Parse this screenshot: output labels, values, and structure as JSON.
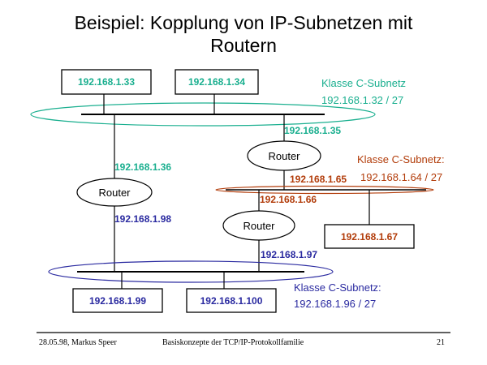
{
  "title": {
    "line1": "Beispiel: Kopplung von IP-Subnetzen mit",
    "line2": "Routern"
  },
  "colors": {
    "teal": "#1aaf8f",
    "brown": "#b23c0a",
    "blue": "#2a2aa0",
    "black": "#000000"
  },
  "hosts": {
    "h33": "192.168.1.33",
    "h34": "192.168.1.34",
    "h67": "192.168.1.67",
    "h99": "192.168.1.99",
    "h100": "192.168.1.100"
  },
  "routers": {
    "r1": "Router",
    "r2": "Router",
    "r3": "Router"
  },
  "interfaces": {
    "i35": "192.168.1.35",
    "i36": "192.168.1.36",
    "i65": "192.168.1.65",
    "i66": "192.168.1.66",
    "i98": "192.168.1.98",
    "i97": "192.168.1.97"
  },
  "subnets": {
    "top": {
      "label": "Klasse C-Subnetz",
      "addr": "192.168.1.32 / 27"
    },
    "middle": {
      "label": "Klasse C-Subnetz:",
      "addr": "192.168.1.64 / 27"
    },
    "bottom": {
      "label": "Klasse C-Subnetz:",
      "addr": "192.168.1.96 / 27"
    }
  },
  "footer": {
    "date_author": "28.05.98, Markus Speer",
    "course": "Basiskonzepte der TCP/IP-Protokollfamilie",
    "page": "21"
  }
}
